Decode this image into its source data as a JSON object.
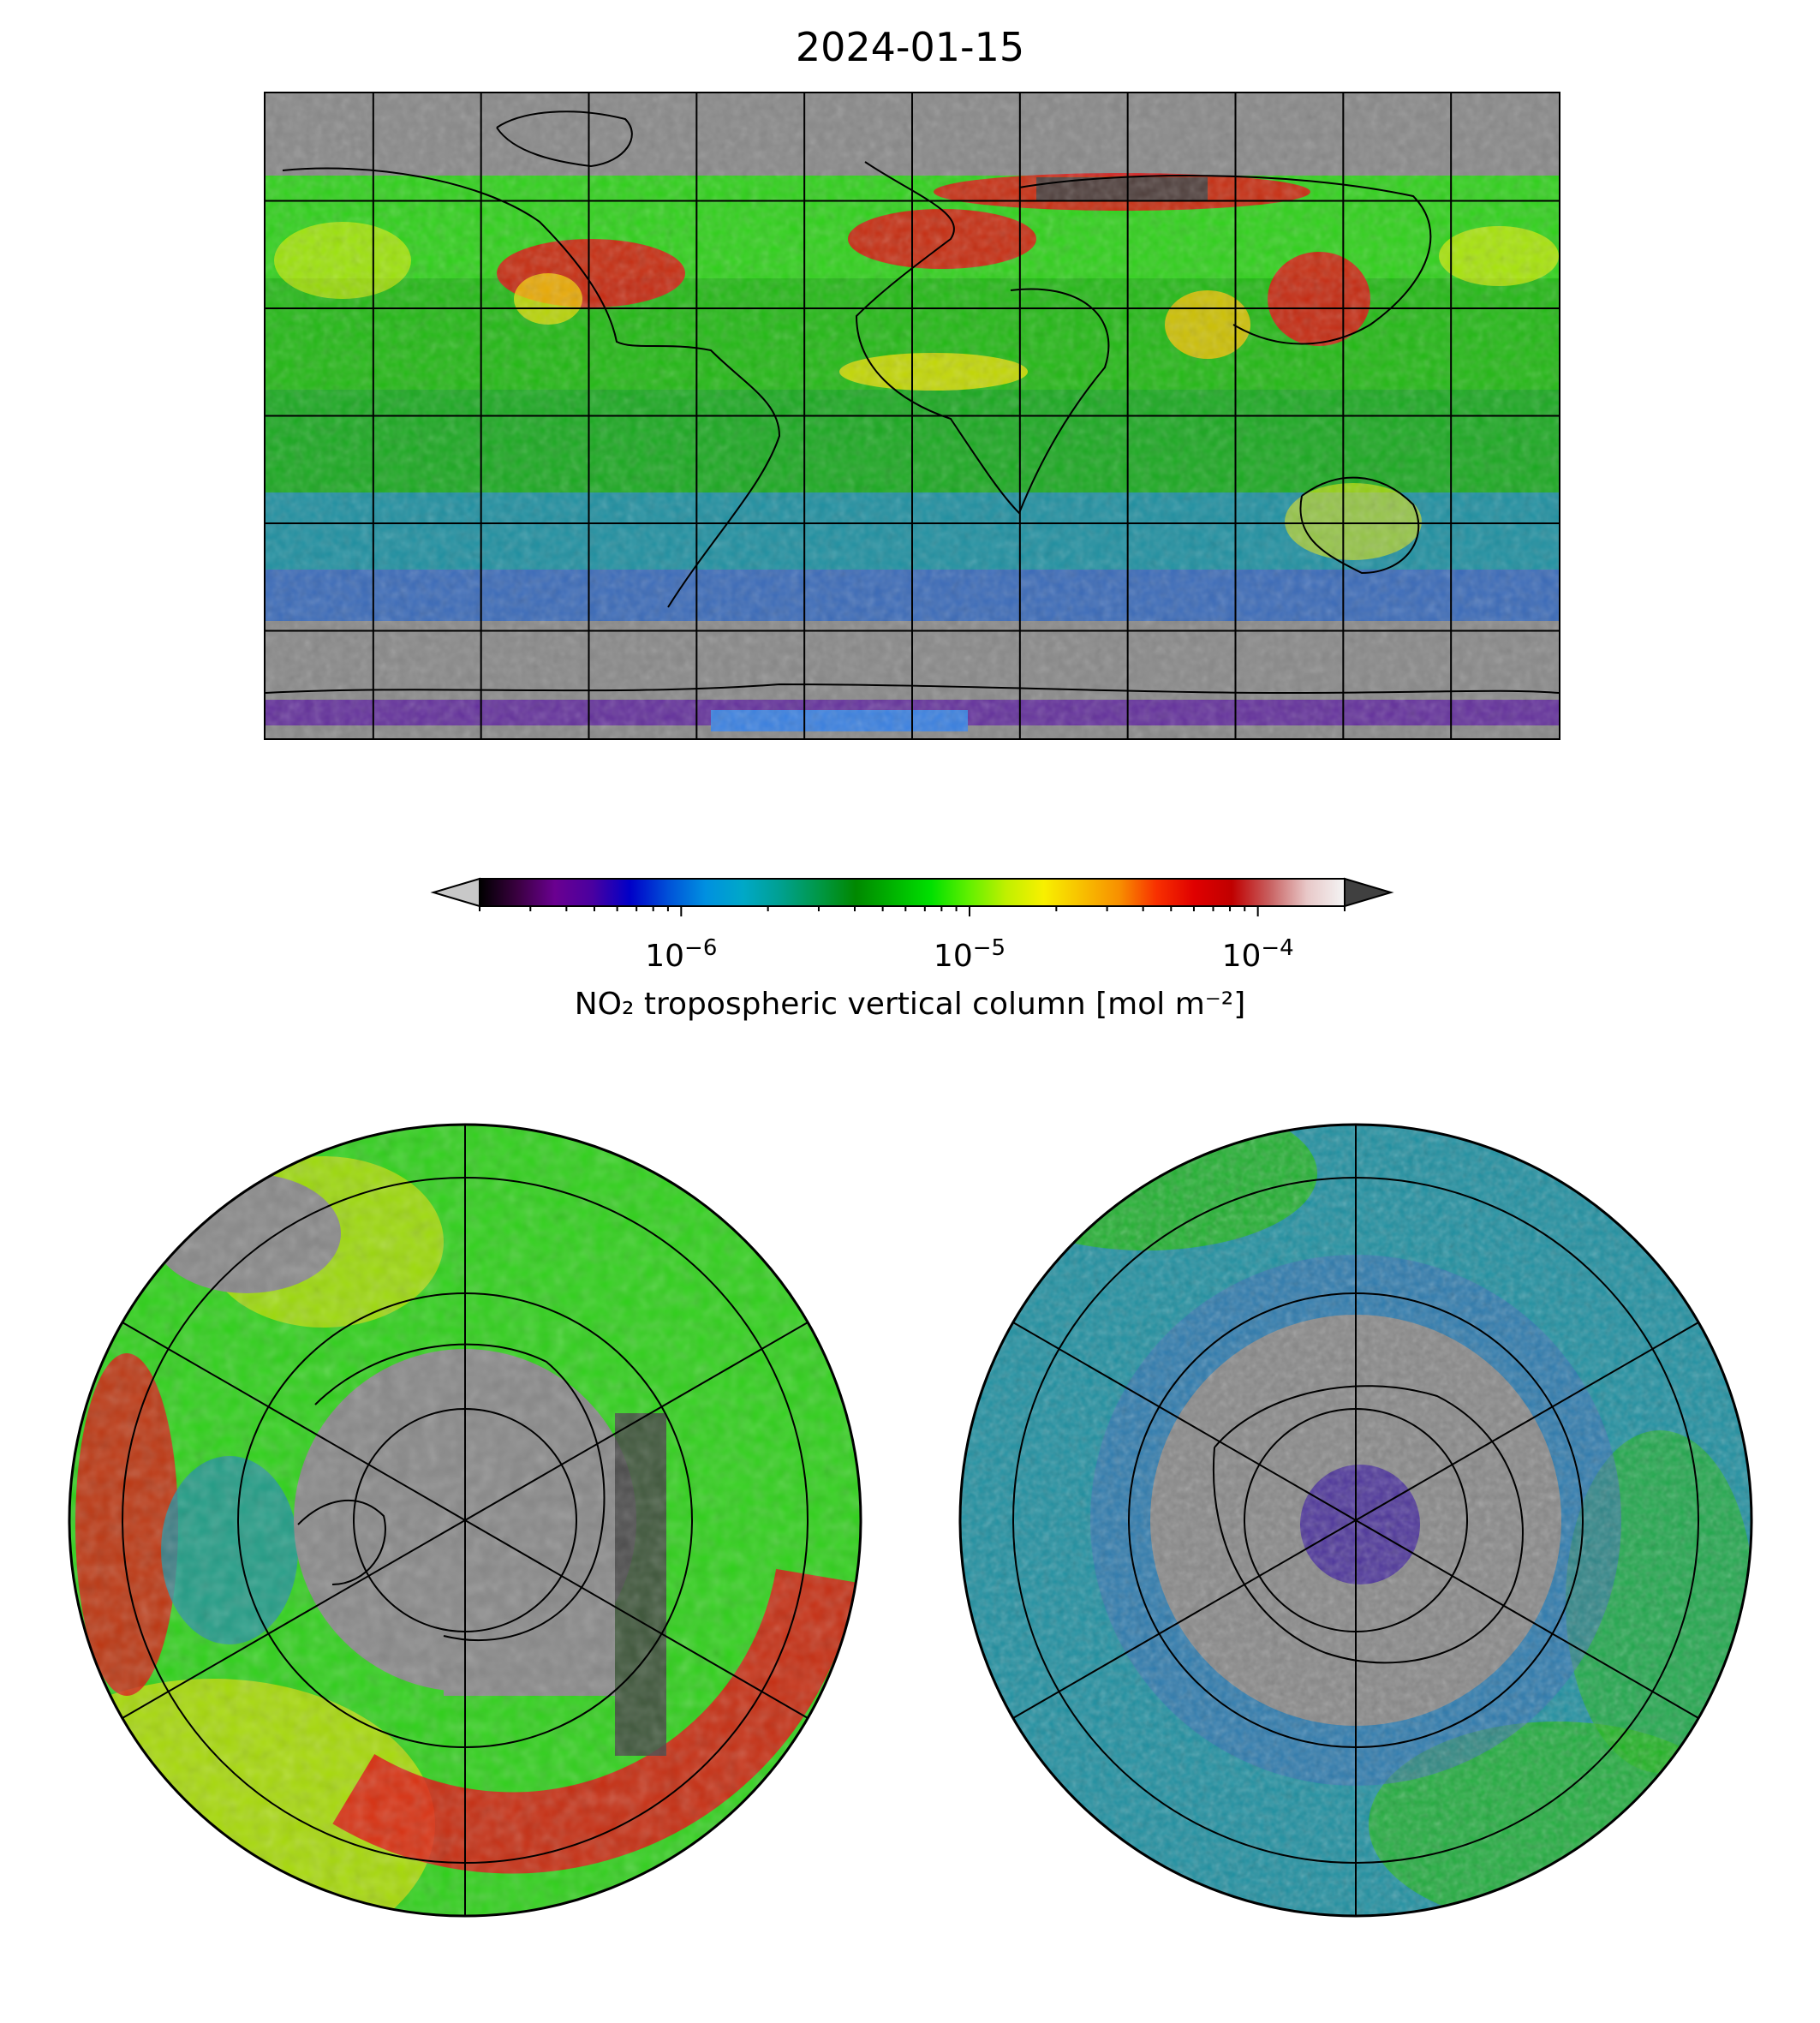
{
  "title": "2024-01-15",
  "colorbar": {
    "label": "NO₂ tropospheric vertical column [mol m⁻²]",
    "scale": "log",
    "ticks": [
      {
        "value": 1e-06,
        "mantissa": "10",
        "exponent": "−6"
      },
      {
        "value": 1e-05,
        "mantissa": "10",
        "exponent": "−5"
      },
      {
        "value": 0.0001,
        "mantissa": "10",
        "exponent": "−4"
      }
    ],
    "range": [
      2e-07,
      0.0002
    ],
    "extend": "both",
    "under_color": "#c8c8c8",
    "over_color": "#404040",
    "colors": [
      "#000000",
      "#3a0040",
      "#6a0090",
      "#4a00a0",
      "#0000c8",
      "#0050d8",
      "#0090e0",
      "#00a8c8",
      "#00a090",
      "#009848",
      "#008800",
      "#00b400",
      "#00e000",
      "#60f000",
      "#c0f000",
      "#f8f000",
      "#f8c000",
      "#f89000",
      "#f83000",
      "#e00000",
      "#c00000",
      "#c86060",
      "#e8c8c8",
      "#f4f4f4"
    ]
  },
  "maps": {
    "global": {
      "projection": "plate carree",
      "missing_color": "#888888"
    },
    "arctic": {
      "projection": "north polar stereographic",
      "missing_color": "#888888"
    },
    "antarctic": {
      "projection": "south polar stereographic",
      "missing_color": "#888888"
    }
  },
  "accent": {
    "grid_line": "#000000",
    "coastline": "#000000"
  }
}
